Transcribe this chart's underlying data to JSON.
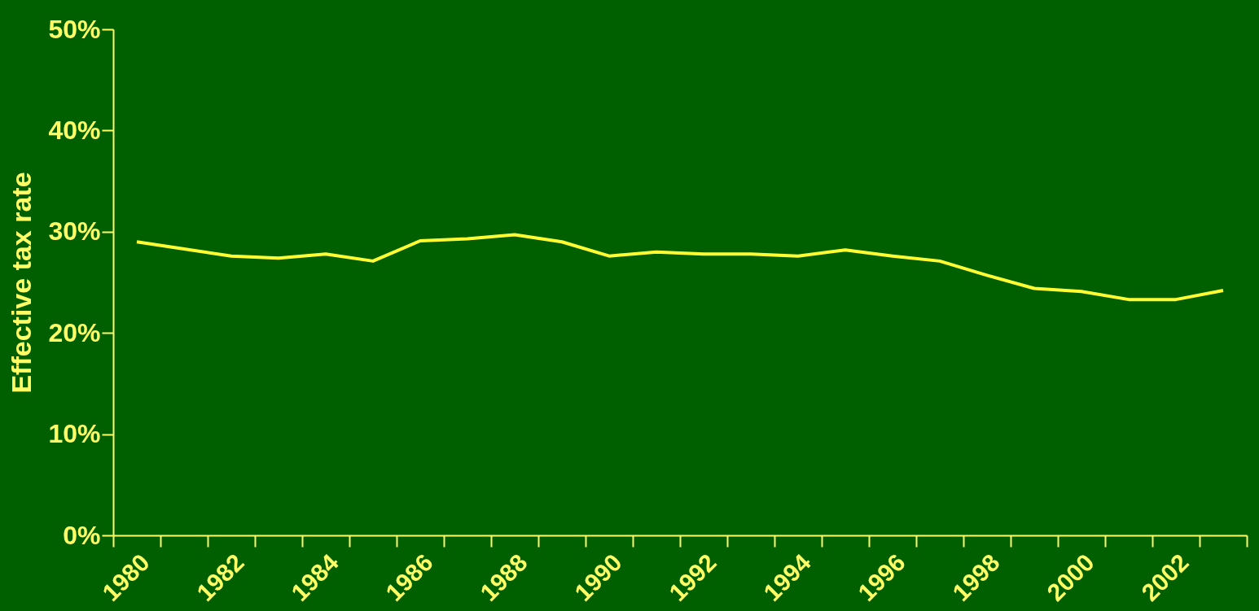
{
  "chart_data": {
    "type": "line",
    "ylabel": "Effective tax rate",
    "categories": [
      "1980",
      null,
      "1982",
      null,
      "1984",
      null,
      "1986",
      null,
      "1988",
      null,
      "1990",
      null,
      "1992",
      null,
      "1994",
      null,
      "1996",
      null,
      "1998",
      null,
      "2000",
      null,
      "2002",
      null
    ],
    "series": [
      {
        "color": "#ffff33",
        "values": [
          29.0,
          28.3,
          27.6,
          27.4,
          27.8,
          27.1,
          29.1,
          29.3,
          29.7,
          29.0,
          27.6,
          28.0,
          27.8,
          27.8,
          27.6,
          28.2,
          27.6,
          27.1,
          25.7,
          24.4,
          24.1,
          23.3,
          23.3,
          24.2
        ]
      }
    ],
    "ylim": [
      0,
      50
    ],
    "yticks": [
      {
        "value": 0,
        "label": "0%"
      },
      {
        "value": 10,
        "label": "10%"
      },
      {
        "value": 20,
        "label": "20%"
      },
      {
        "value": 30,
        "label": "30%"
      },
      {
        "value": 40,
        "label": "40%"
      },
      {
        "value": 50,
        "label": "50%"
      }
    ],
    "grid": false,
    "legend": false,
    "marker": "none",
    "line_style": "solid"
  }
}
